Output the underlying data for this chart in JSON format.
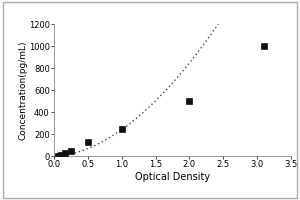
{
  "x_data": [
    0.062,
    0.1,
    0.156,
    0.25,
    0.5,
    1.0,
    2.0,
    3.1
  ],
  "y_data": [
    0,
    12,
    25,
    50,
    125,
    250,
    500,
    1000
  ],
  "xlabel": "Optical Density",
  "ylabel": "Concentration(pg/mL)",
  "xlim": [
    0,
    3.5
  ],
  "ylim": [
    0,
    1200
  ],
  "xticks": [
    0,
    0.5,
    1.0,
    1.5,
    2.0,
    2.5,
    3.0,
    3.5
  ],
  "yticks": [
    0,
    200,
    400,
    600,
    800,
    1000,
    1200
  ],
  "marker_color": "#111111",
  "line_color": "#444444",
  "bg_color": "#ffffff",
  "plot_bg_color": "#ffffff",
  "frame_color": "#aaaaaa",
  "marker_size": 5,
  "line_width": 1.0,
  "xlabel_fontsize": 7,
  "ylabel_fontsize": 6.5,
  "tick_fontsize": 6
}
